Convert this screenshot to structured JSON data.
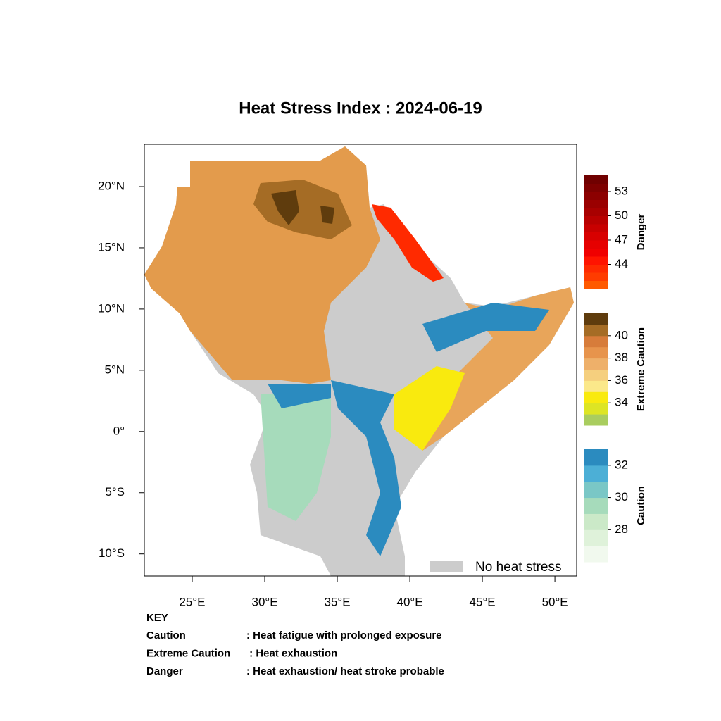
{
  "title": "Heat Stress Index : 2024-06-19",
  "map": {
    "xlim": [
      21.7,
      51.5
    ],
    "ylim": [
      -11.8,
      23.45
    ],
    "xticks": [
      {
        "value": 25,
        "label": "25°E"
      },
      {
        "value": 30,
        "label": "30°E"
      },
      {
        "value": 35,
        "label": "35°E"
      },
      {
        "value": 40,
        "label": "40°E"
      },
      {
        "value": 45,
        "label": "45°E"
      },
      {
        "value": 50,
        "label": "50°E"
      }
    ],
    "yticks": [
      {
        "value": 20,
        "label": "20°N"
      },
      {
        "value": 15,
        "label": "15°N"
      },
      {
        "value": 10,
        "label": "10°N"
      },
      {
        "value": 5,
        "label": "5°N"
      },
      {
        "value": 0,
        "label": "0°"
      },
      {
        "value": -5,
        "label": "5°S"
      },
      {
        "value": -10,
        "label": "10°S"
      }
    ]
  },
  "legend": {
    "label": "No heat stress",
    "color": "#cccccc"
  },
  "colorbars": [
    {
      "name": "Danger",
      "lim": [
        41,
        55
      ],
      "ticks": [
        53,
        50,
        47,
        44
      ],
      "colors": [
        "#ff5a00",
        "#ff3c00",
        "#ff2a00",
        "#ff1400",
        "#f00000",
        "#e60000",
        "#d80000",
        "#c80000",
        "#b80000",
        "#a80000",
        "#9a0000",
        "#8c0000",
        "#7e0000",
        "#700000"
      ]
    },
    {
      "name": "Extreme Caution",
      "lim": [
        32,
        42
      ],
      "ticks": [
        40,
        38,
        36,
        34
      ],
      "colors": [
        "#a9cd5f",
        "#dde524",
        "#f9ea0e",
        "#fbe88a",
        "#f5cf7e",
        "#eeb06a",
        "#e7944c",
        "#d77c3a",
        "#a56c25",
        "#5f3c0d"
      ]
    },
    {
      "name": "Caution",
      "lim": [
        26,
        33
      ],
      "ticks": [
        32,
        30,
        28
      ],
      "colors": [
        "#f1f9ee",
        "#dff2da",
        "#cbe9c8",
        "#a6dbbb",
        "#7ac7c6",
        "#4cafd6",
        "#2b8bbf"
      ]
    }
  ],
  "key": {
    "title": "KEY",
    "rows": [
      [
        "Caution",
        ": Heat fatigue with prolonged exposure"
      ],
      [
        "Extreme Caution",
        " : Heat exhaustion"
      ],
      [
        "Danger",
        ": Heat exhaustion/ heat stroke probable"
      ]
    ]
  }
}
